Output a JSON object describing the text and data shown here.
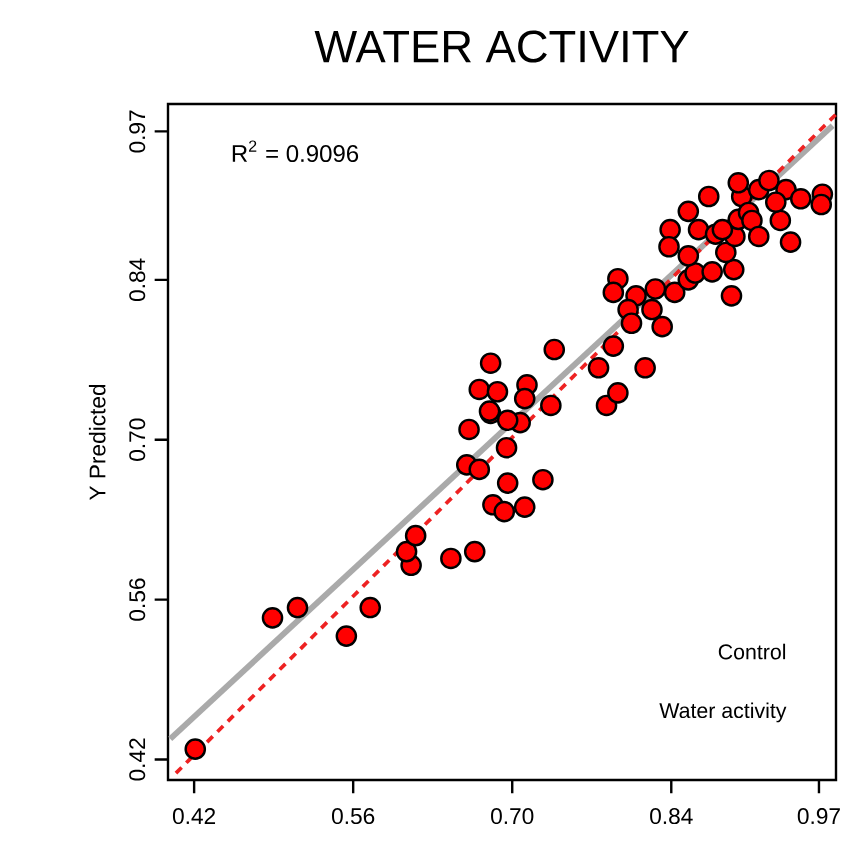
{
  "chart_data": {
    "type": "scatter",
    "title": "WATER ACTIVITY",
    "ylabel": "Y Predicted",
    "annotations": [
      "R$^{2}$ = 0.9096",
      "Control",
      "Water activity"
    ],
    "xlim": [
      0.397,
      0.985
    ],
    "ylim": [
      0.402,
      0.994
    ],
    "xticks": [
      0.42,
      0.56,
      {
        "value": 0.7,
        "label": "0.70"
      },
      0.84,
      0.97
    ],
    "yticks": [
      0.42,
      0.56,
      {
        "value": 0.7,
        "label": "0.70"
      },
      0.84,
      0.97
    ],
    "grid": false,
    "marker": "circle",
    "series": [
      {
        "type": "line",
        "color": "#aaaaaa",
        "line_style": "solid",
        "marker": "none",
        "x": [
          0.399,
          0.982
        ],
        "values": [
          0.438,
          0.975
        ]
      },
      {
        "type": "line",
        "color": "#ee2222",
        "line_style": "dashed",
        "marker": "none",
        "x": [
          0.404,
          0.985
        ],
        "values": [
          0.408,
          0.985
        ]
      },
      {
        "color": "#ff0000",
        "x": [
          0.421,
          0.489,
          0.511,
          0.554,
          0.575,
          0.611,
          0.607,
          0.615,
          0.646,
          0.667,
          0.66,
          0.671,
          0.662,
          0.683,
          0.693,
          0.711,
          0.696,
          0.727,
          0.695,
          0.681,
          0.707,
          0.734,
          0.783,
          0.681,
          0.671,
          0.687,
          0.713,
          0.711,
          0.68,
          0.696,
          0.737,
          0.776,
          0.789,
          0.817,
          0.793,
          0.793,
          0.789,
          0.809,
          0.802,
          0.826,
          0.823,
          0.832,
          0.805,
          0.843,
          0.855,
          0.861,
          0.876,
          0.893,
          0.895,
          0.855,
          0.873,
          0.839,
          0.838,
          0.855,
          0.864,
          0.879,
          0.888,
          0.896,
          0.899,
          0.902,
          0.899,
          0.908,
          0.911,
          0.917,
          0.926,
          0.917,
          0.936,
          0.941,
          0.945,
          0.954,
          0.973,
          0.972,
          0.932,
          0.885
        ],
        "values": [
          0.429,
          0.544,
          0.553,
          0.528,
          0.553,
          0.59,
          0.602,
          0.616,
          0.596,
          0.602,
          0.678,
          0.674,
          0.709,
          0.643,
          0.637,
          0.641,
          0.662,
          0.665,
          0.693,
          0.723,
          0.715,
          0.73,
          0.73,
          0.767,
          0.744,
          0.742,
          0.748,
          0.736,
          0.725,
          0.717,
          0.779,
          0.763,
          0.782,
          0.763,
          0.741,
          0.841,
          0.829,
          0.826,
          0.814,
          0.832,
          0.814,
          0.799,
          0.802,
          0.829,
          0.84,
          0.846,
          0.847,
          0.826,
          0.849,
          0.9,
          0.913,
          0.884,
          0.869,
          0.861,
          0.884,
          0.88,
          0.864,
          0.878,
          0.893,
          0.913,
          0.925,
          0.899,
          0.892,
          0.919,
          0.927,
          0.878,
          0.892,
          0.919,
          0.873,
          0.911,
          0.915,
          0.906,
          0.908,
          0.884
        ]
      }
    ]
  }
}
